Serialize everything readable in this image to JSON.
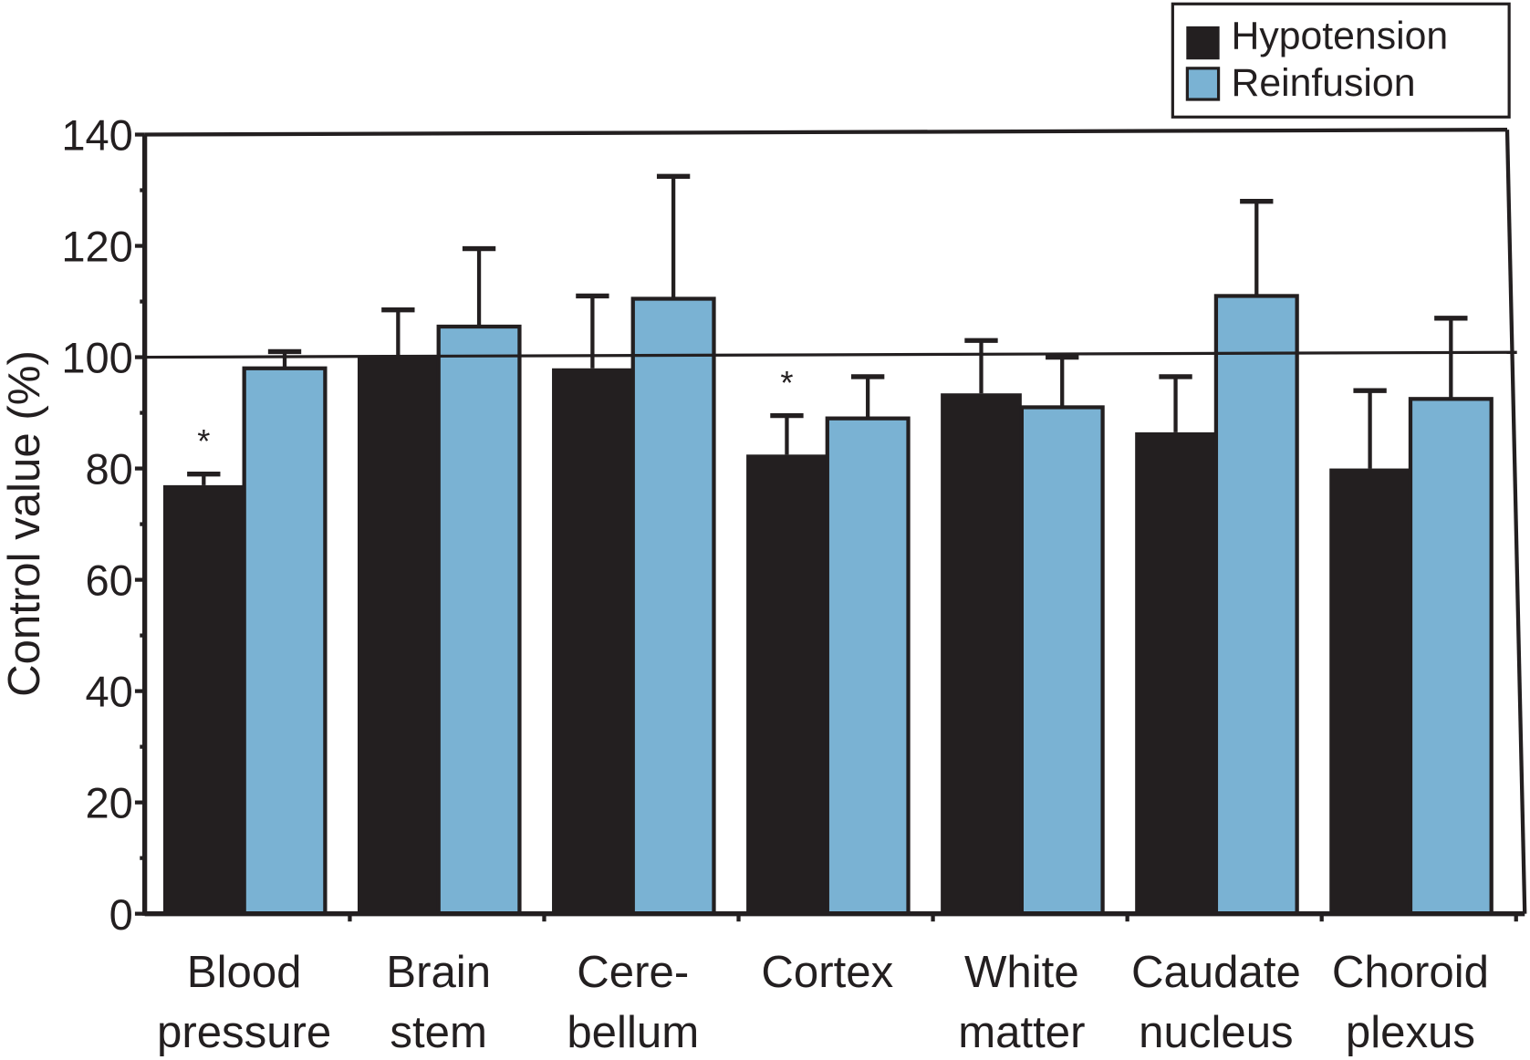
{
  "chart_data": {
    "type": "bar",
    "title": "",
    "xlabel": "",
    "ylabel": "Control value (%)",
    "ylim": [
      0,
      140
    ],
    "yticks": [
      0,
      20,
      40,
      60,
      80,
      100,
      120,
      140
    ],
    "reference_line": 100,
    "grid": false,
    "legend_position": "top-right",
    "categories": [
      [
        "Blood",
        "pressure"
      ],
      [
        "Brain",
        "stem"
      ],
      [
        "Cere-",
        "bellum"
      ],
      [
        "Cortex"
      ],
      [
        "White",
        "matter"
      ],
      [
        "Caudate",
        "nucleus"
      ],
      [
        "Choroid",
        "plexus"
      ]
    ],
    "series": [
      {
        "name": "Hypotension",
        "color": "#231f20",
        "values": [
          77,
          100,
          98,
          82.5,
          93.5,
          86.5,
          80
        ],
        "error_upper": [
          79,
          108.5,
          111,
          89.5,
          103,
          96.5,
          94
        ],
        "significance": [
          "*",
          "",
          "",
          "*",
          "",
          "",
          ""
        ]
      },
      {
        "name": "Reinfusion",
        "color": "#7ab2d3",
        "values": [
          98,
          105.5,
          110.5,
          89,
          91,
          111,
          92.5
        ],
        "error_upper": [
          101,
          119.5,
          132.5,
          96.5,
          100,
          128,
          107
        ],
        "significance": [
          "",
          "",
          "",
          "",
          "",
          "",
          ""
        ]
      }
    ]
  }
}
